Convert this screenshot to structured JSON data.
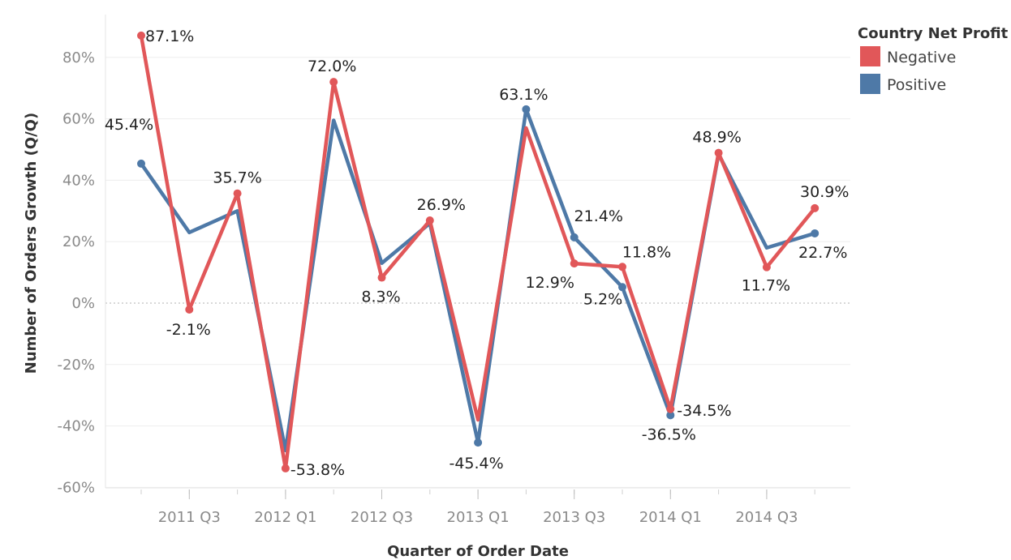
{
  "chart_data": {
    "type": "line",
    "xlabel": "Quarter of Order Date",
    "ylabel": "Number of Orders Growth (Q/Q)",
    "ylim": [
      -65,
      92
    ],
    "yticks": [
      -60,
      -40,
      -20,
      0,
      20,
      40,
      60,
      80
    ],
    "ytick_labels": [
      "-60%",
      "-40%",
      "-20%",
      "0%",
      "20%",
      "40%",
      "60%",
      "80%"
    ],
    "x": [
      "2011 Q2",
      "2011 Q3",
      "2011 Q4",
      "2012 Q1",
      "2012 Q2",
      "2012 Q3",
      "2012 Q4",
      "2013 Q1",
      "2013 Q2",
      "2013 Q3",
      "2013 Q4",
      "2014 Q1",
      "2014 Q2",
      "2014 Q3",
      "2014 Q4"
    ],
    "xtick_labels": [
      "2011 Q3",
      "2012 Q1",
      "2012 Q3",
      "2013 Q1",
      "2013 Q3",
      "2014 Q1",
      "2014 Q3"
    ],
    "xtick_positions": [
      "2011 Q3",
      "2012 Q1",
      "2012 Q3",
      "2013 Q1",
      "2013 Q3",
      "2014 Q1",
      "2014 Q3"
    ],
    "grid": true,
    "zero_line": "dotted",
    "legend_title": "Country Net Profit",
    "legend_position": "top-right",
    "series": [
      {
        "name": "Positive",
        "color": "#4e79a7",
        "values": [
          45.4,
          23,
          30,
          -48,
          59.5,
          13,
          26,
          -45.4,
          63.1,
          21.4,
          5.2,
          -36.5,
          48.5,
          18,
          22.7
        ],
        "labels": [
          "45.4%",
          "",
          "",
          "",
          "",
          "",
          "",
          "-45.4%",
          "63.1%",
          "21.4%",
          "5.2%",
          "-36.5%",
          "",
          "",
          "22.7%"
        ]
      },
      {
        "name": "Negative",
        "color": "#e15759",
        "values": [
          87.1,
          -2.1,
          35.7,
          -53.8,
          72.0,
          8.3,
          26.9,
          -38,
          57,
          12.9,
          11.8,
          -34.5,
          48.9,
          11.7,
          30.9
        ],
        "labels": [
          "87.1%",
          "-2.1%",
          "35.7%",
          "-53.8%",
          "72.0%",
          "8.3%",
          "26.9%",
          "",
          "",
          "12.9%",
          "11.8%",
          "-34.5%",
          "48.9%",
          "11.7%",
          "30.9%"
        ]
      }
    ]
  }
}
